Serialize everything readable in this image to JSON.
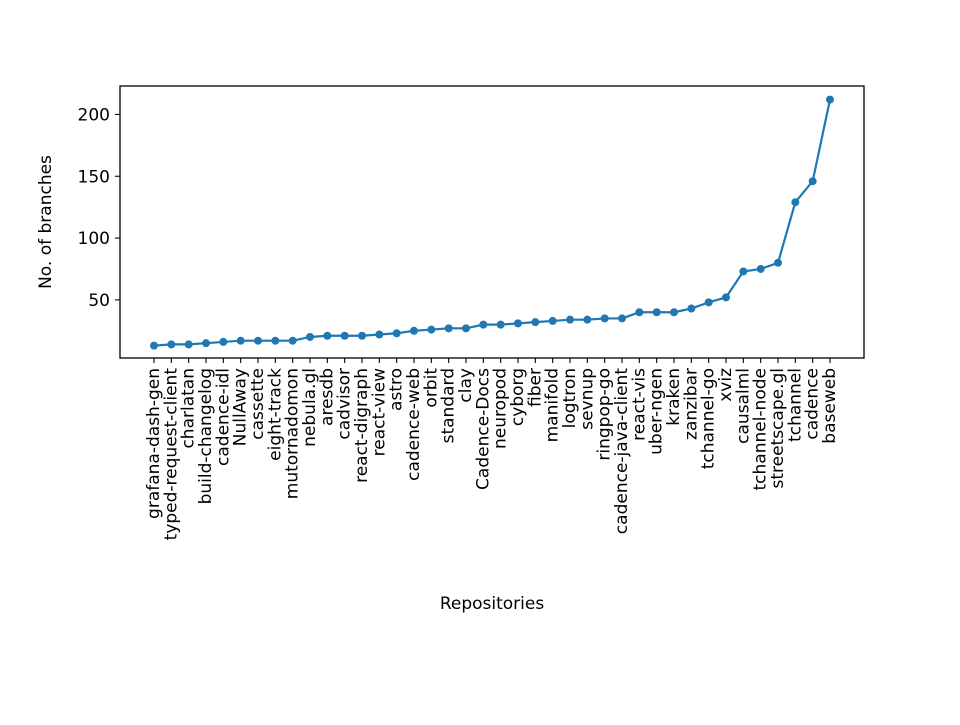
{
  "chart_data": {
    "type": "line",
    "xlabel": "Repositories",
    "ylabel": "No. of branches",
    "ylim": [
      3,
      223
    ],
    "yticks": [
      50,
      100,
      150,
      200
    ],
    "grid": false,
    "marker": "circle",
    "line_color": "#1f77b4",
    "categories": [
      "grafana-dash-gen",
      "typed-request-client",
      "charlatan",
      "build-changelog",
      "cadence-idl",
      "NullAway",
      "cassette",
      "eight-track",
      "mutornadomon",
      "nebula.gl",
      "aresdb",
      "cadvisor",
      "react-digraph",
      "react-view",
      "astro",
      "cadence-web",
      "orbit",
      "standard",
      "clay",
      "Cadence-Docs",
      "neuropod",
      "cyborg",
      "fiber",
      "manifold",
      "logtron",
      "sevnup",
      "ringpop-go",
      "cadence-java-client",
      "react-vis",
      "uber-ngen",
      "kraken",
      "zanzibar",
      "tchannel-go",
      "xviz",
      "causalml",
      "tchannel-node",
      "streetscape.gl",
      "tchannel",
      "cadence",
      "baseweb"
    ],
    "series": [
      {
        "values": [
          13,
          14,
          14,
          15,
          16,
          17,
          17,
          17,
          17,
          20,
          21,
          21,
          21,
          22,
          23,
          25,
          26,
          27,
          27,
          30,
          30,
          31,
          32,
          33,
          34,
          34,
          35,
          35,
          40,
          40,
          40,
          43,
          48,
          52,
          73,
          75,
          80,
          129,
          146,
          212
        ]
      }
    ]
  }
}
